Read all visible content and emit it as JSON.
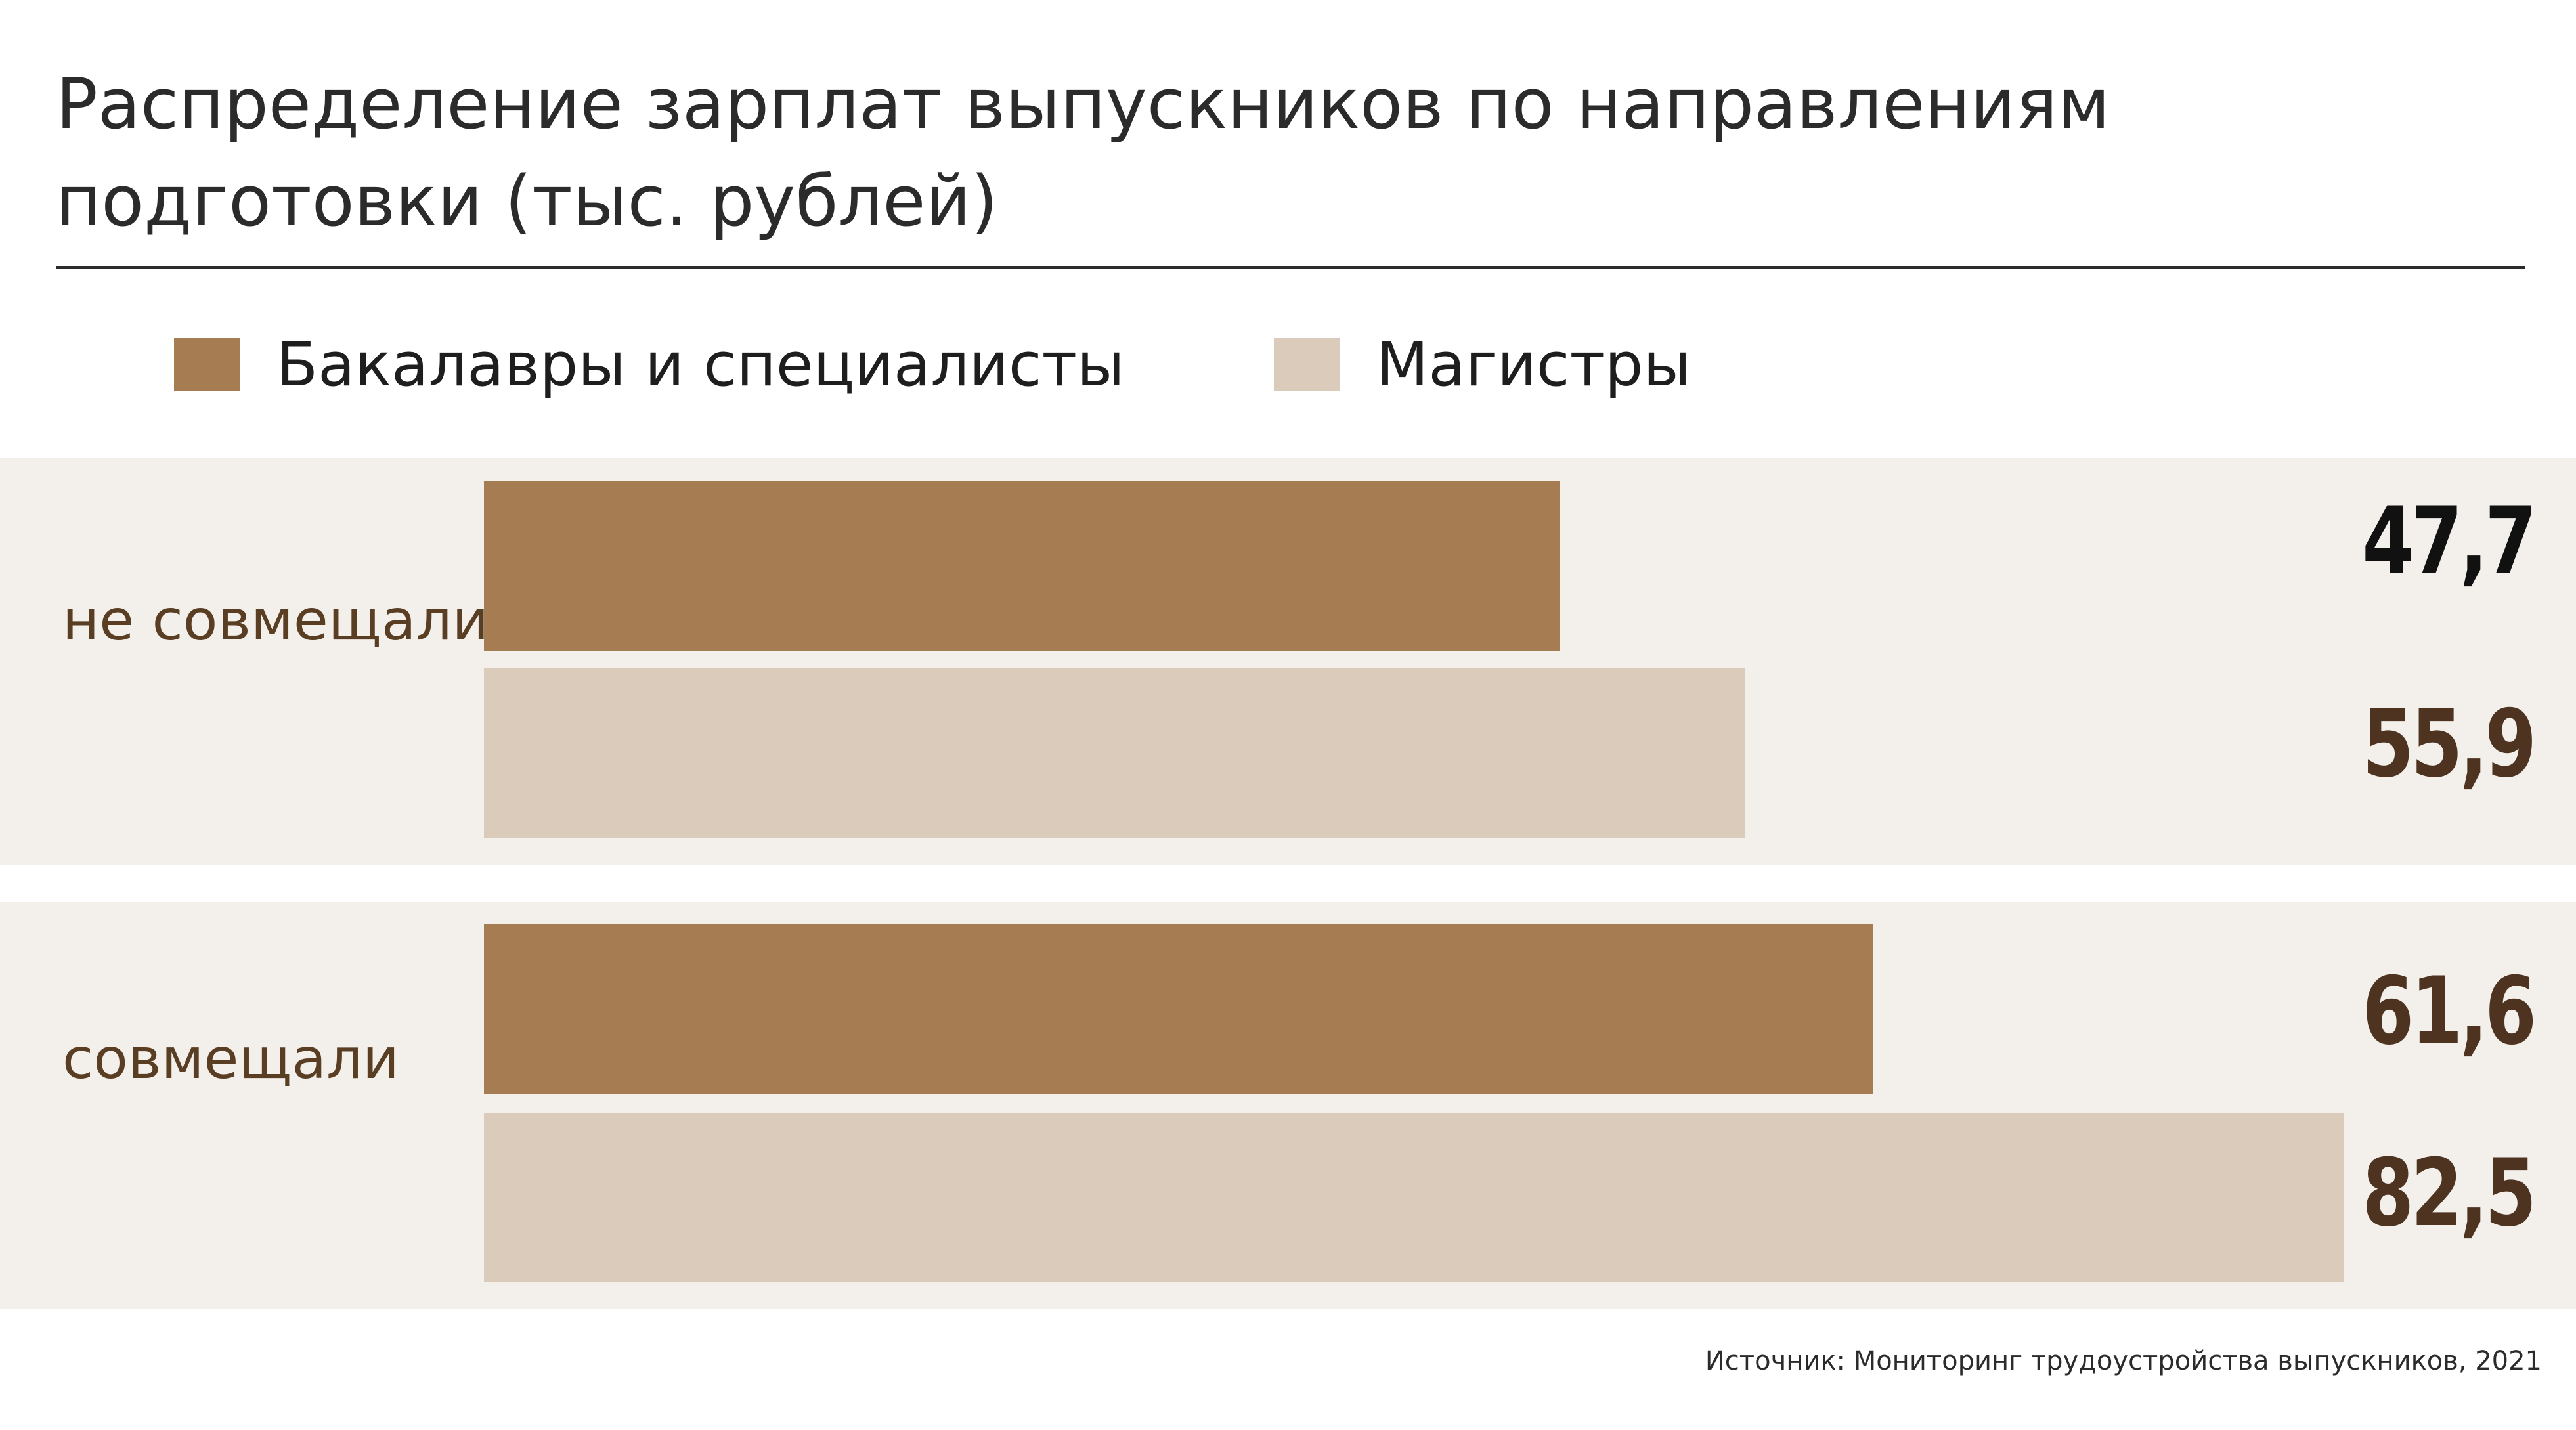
{
  "chart_data": {
    "type": "bar",
    "orientation": "horizontal",
    "title": "Распределение зарплат выпускников по направлениям подготовки (тыс. рублей)",
    "categories": [
      "не совмещали",
      "совмещали"
    ],
    "series": [
      {
        "name": "Бакалавры и специалисты",
        "values": [
          47.7,
          61.6
        ],
        "labels": [
          "47,7",
          "61,6"
        ],
        "color": "#a67c52"
      },
      {
        "name": "Магистры",
        "values": [
          55.9,
          82.5
        ],
        "labels": [
          "55,9",
          "82,5"
        ],
        "color": "#dacbbb"
      }
    ],
    "xlim": [
      0,
      82.5
    ],
    "grid": false,
    "legend_position": "top-left",
    "value_label_colors": [
      "#111111",
      "#4e3420",
      "#4e3420",
      "#4e3420"
    ],
    "band_color": "#f3f0eb",
    "category_label_color": "#5a3e24"
  },
  "source": "Источник: Мониторинг трудоустройства выпускников, 2021"
}
